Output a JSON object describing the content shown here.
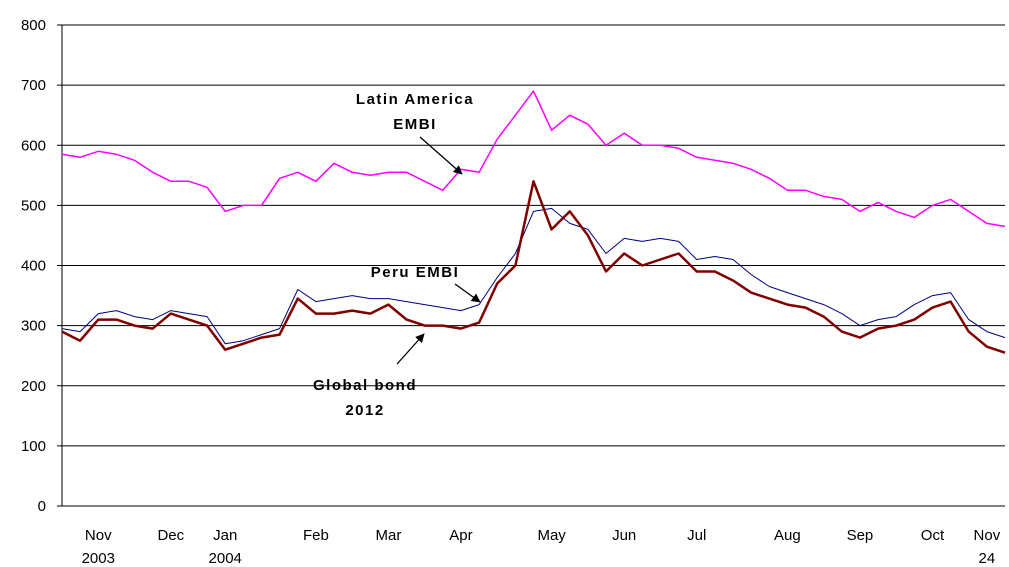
{
  "chart_data": {
    "type": "line",
    "categories": [
      null,
      null,
      "Nov 2003",
      null,
      null,
      null,
      "Dec",
      null,
      null,
      "Jan 2004",
      null,
      null,
      null,
      null,
      "Feb",
      null,
      null,
      null,
      "Mar",
      null,
      null,
      null,
      "Apr",
      null,
      null,
      null,
      null,
      "May",
      null,
      null,
      null,
      "Jun",
      null,
      null,
      null,
      "Jul",
      null,
      null,
      null,
      null,
      "Aug",
      null,
      null,
      null,
      "Sep",
      null,
      null,
      null,
      "Oct",
      null,
      null,
      "Nov 24",
      null
    ],
    "series": [
      {
        "name": "Latin America EMBI",
        "color": "#ff00ff",
        "values": [
          585,
          580,
          590,
          585,
          575,
          555,
          540,
          540,
          530,
          490,
          500,
          500,
          545,
          555,
          540,
          570,
          555,
          550,
          555,
          555,
          540,
          525,
          560,
          555,
          610,
          650,
          690,
          625,
          650,
          635,
          600,
          620,
          600,
          600,
          595,
          580,
          575,
          570,
          560,
          545,
          525,
          525,
          515,
          510,
          490,
          505,
          490,
          480,
          500,
          510,
          490,
          470,
          465
        ]
      },
      {
        "name": "Peru EMBI",
        "color": "#000080",
        "width": 1,
        "values": [
          295,
          290,
          320,
          325,
          315,
          310,
          325,
          320,
          315,
          270,
          275,
          285,
          295,
          360,
          340,
          345,
          350,
          345,
          345,
          340,
          335,
          330,
          325,
          335,
          380,
          420,
          490,
          495,
          470,
          460,
          420,
          445,
          440,
          445,
          440,
          410,
          415,
          410,
          385,
          365,
          355,
          345,
          335,
          320,
          300,
          310,
          315,
          335,
          350,
          355,
          310,
          290,
          280
        ]
      },
      {
        "name": "Global bond 2012",
        "color": "#800000",
        "width": 2.5,
        "values": [
          290,
          275,
          310,
          310,
          300,
          295,
          320,
          310,
          300,
          260,
          270,
          280,
          285,
          345,
          320,
          320,
          325,
          320,
          335,
          310,
          300,
          300,
          295,
          305,
          370,
          400,
          540,
          460,
          490,
          450,
          390,
          420,
          400,
          410,
          420,
          390,
          390,
          375,
          355,
          345,
          335,
          330,
          315,
          290,
          280,
          295,
          300,
          310,
          330,
          340,
          290,
          265,
          255
        ]
      }
    ],
    "annotations": [
      {
        "lines": [
          "Latin America",
          "EMBI"
        ]
      },
      {
        "lines": [
          "Peru EMBI"
        ]
      },
      {
        "lines": [
          "Global bond",
          "2012"
        ]
      }
    ],
    "ylim": [
      0,
      800
    ],
    "yticks": [
      0,
      100,
      200,
      300,
      400,
      500,
      600,
      700,
      800
    ],
    "grid": true
  }
}
